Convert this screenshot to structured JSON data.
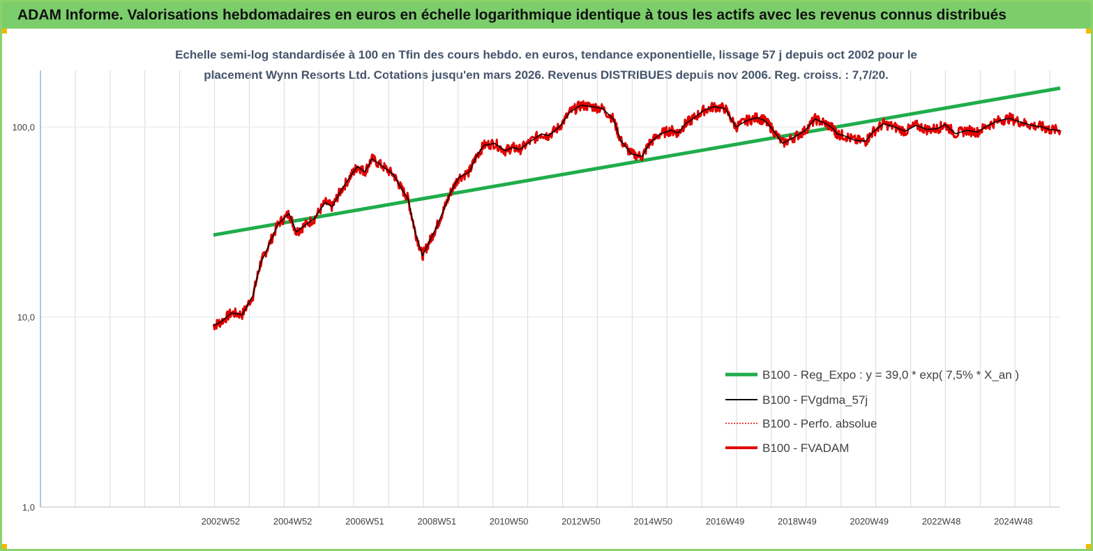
{
  "header": {
    "title": "ADAM Informe. Valorisations hebdomadaires en euros en échelle logarithmique identique à tous les actifs avec les revenus connus distribués"
  },
  "chart_data": {
    "type": "line",
    "title_line1": "Echelle semi-log standardisée à 100 en Tfin des cours hebdo. en euros, tendance exponentielle, lissage 57 j depuis oct 2002 pour le",
    "title_line2": "placement Wynn Resorts Ltd. Cotations jusqu'en mars 2026. Revenus DISTRIBUES depuis nov 2006. Reg. croiss. : 7,7/20.",
    "y_scale": "log",
    "ylim": [
      1,
      200
    ],
    "y_ticks": [
      "100,0",
      "10,0",
      "1,0"
    ],
    "x_ticks": [
      "2002W52",
      "2004W52",
      "2006W51",
      "2008W51",
      "2010W50",
      "2012W50",
      "2014W50",
      "2016W49",
      "2018W49",
      "2020W49",
      "2022W48",
      "2024W48"
    ],
    "x_range": [
      1998.0,
      2026.3
    ],
    "grid": "vertical",
    "legend_position": "bottom-right",
    "colors": {
      "trend": "#1fad4b",
      "smooth": "#000000",
      "perfo": "#e00000",
      "fvadam": "#e00000"
    },
    "series": [
      {
        "name": "B100 - Reg_Expo : y = 39,0 * exp( 7,5% *  X_an )",
        "key": "trend",
        "style": "thick",
        "x": [
          2002.8,
          2026.3
        ],
        "y": [
          27,
          160
        ]
      },
      {
        "name": "B100 - FVgdma_57j",
        "key": "smooth",
        "style": "thin"
      },
      {
        "name": "B100 - Perfo. absolue",
        "key": "perfo",
        "style": "dotted"
      },
      {
        "name": "B100 - FVADAM",
        "key": "fvadam",
        "style": "thick",
        "x": [
          2002.8,
          2003.0,
          2003.3,
          2003.6,
          2003.9,
          2004.1,
          2004.3,
          2004.6,
          2004.9,
          2005.1,
          2005.3,
          2005.6,
          2005.9,
          2006.1,
          2006.3,
          2006.6,
          2006.8,
          2007.0,
          2007.2,
          2007.5,
          2007.8,
          2008.0,
          2008.2,
          2008.4,
          2008.6,
          2008.8,
          2009.0,
          2009.2,
          2009.4,
          2009.6,
          2009.9,
          2010.1,
          2010.3,
          2010.6,
          2010.9,
          2011.1,
          2011.3,
          2011.6,
          2011.9,
          2012.1,
          2012.4,
          2012.7,
          2013.0,
          2013.3,
          2013.6,
          2013.9,
          2014.1,
          2014.4,
          2014.7,
          2014.9,
          2015.2,
          2015.5,
          2015.7,
          2015.9,
          2016.1,
          2016.4,
          2016.7,
          2017.0,
          2017.3,
          2017.6,
          2017.9,
          2018.1,
          2018.3,
          2018.6,
          2018.9,
          2019.2,
          2019.5,
          2019.8,
          2020.0,
          2020.1,
          2020.3,
          2020.6,
          2020.9,
          2021.1,
          2021.4,
          2021.7,
          2022.0,
          2022.3,
          2022.6,
          2022.9,
          2023.1,
          2023.4,
          2023.7,
          2024.0,
          2024.3,
          2024.6,
          2024.9,
          2025.2,
          2025.5,
          2025.8,
          2026.0,
          2026.3
        ],
        "y": [
          9.0,
          9.4,
          10.5,
          10.3,
          13,
          19,
          23,
          31,
          35,
          28,
          30,
          33,
          40,
          38,
          45,
          55,
          62,
          58,
          68,
          62,
          56,
          48,
          42,
          28,
          21,
          25,
          30,
          37,
          46,
          54,
          58,
          70,
          80,
          82,
          75,
          78,
          76,
          84,
          92,
          90,
          100,
          120,
          130,
          128,
          125,
          110,
          85,
          72,
          70,
          82,
          92,
          96,
          93,
          104,
          110,
          122,
          128,
          125,
          100,
          108,
          112,
          108,
          98,
          82,
          88,
          95,
          110,
          104,
          98,
          92,
          90,
          85,
          84,
          94,
          104,
          100,
          95,
          102,
          97,
          98,
          103,
          92,
          96,
          94,
          102,
          108,
          111,
          106,
          102,
          100,
          97,
          96
        ]
      }
    ]
  }
}
